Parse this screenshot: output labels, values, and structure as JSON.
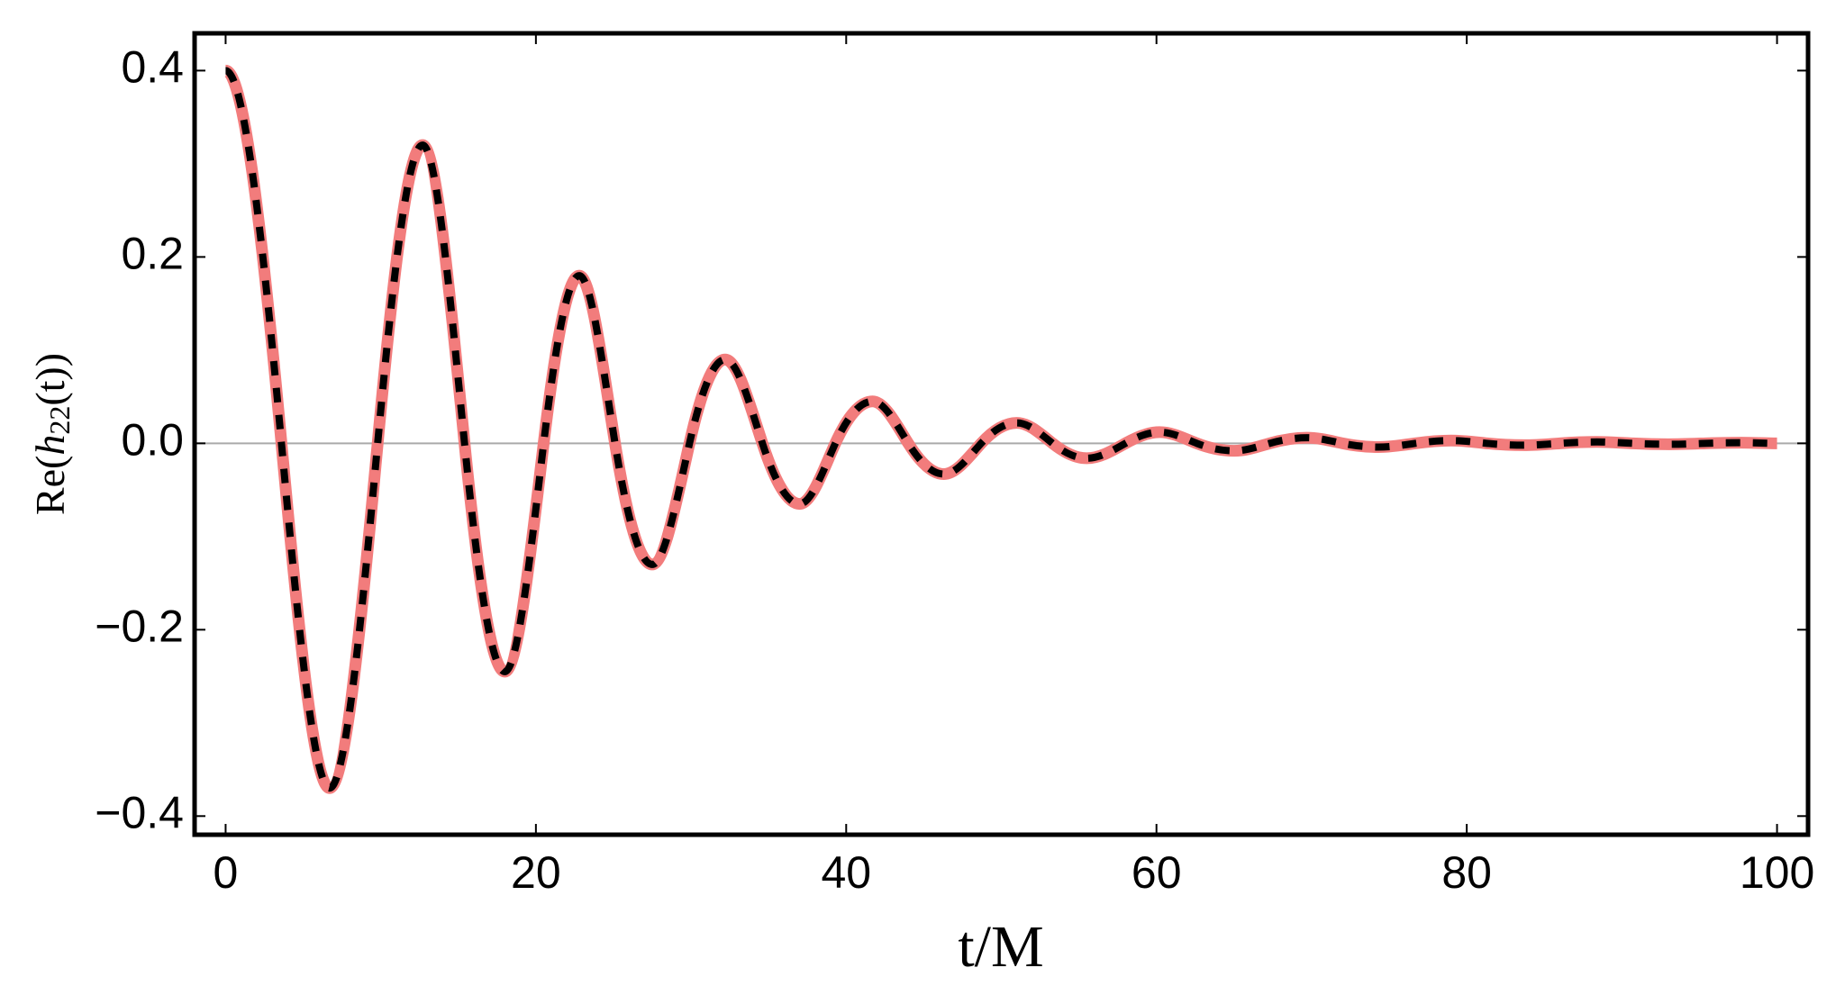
{
  "chart_data": {
    "type": "line",
    "xlabel": "t/M",
    "ylabel": [
      "Re(",
      "h",
      "22",
      "(t))"
    ],
    "x": [
      0,
      3.6,
      6.7,
      9.8,
      12.7,
      15.4,
      18,
      20.5,
      22.8,
      25.1,
      27.5,
      29.9,
      32.2,
      34.6,
      37,
      39.3,
      41.7,
      44,
      46.3,
      48.7,
      51,
      53.3,
      55.5,
      58,
      60.2,
      62.6,
      65,
      67.3,
      69.7,
      72,
      74.3,
      76.7,
      79,
      81.3,
      83.7,
      86,
      88.4,
      90.7,
      93,
      95.4,
      97.7,
      100
    ],
    "series": [
      {
        "color": "#f27c7c",
        "dashed": false,
        "values": [
          0.4,
          0,
          -0.37,
          0,
          0.32,
          0,
          -0.245,
          0,
          0.18,
          0,
          -0.13,
          0,
          0.09,
          0,
          -0.065,
          0,
          0.045,
          0,
          -0.033,
          0,
          0.022,
          0,
          -0.016,
          0,
          0.012,
          0,
          -0.008,
          0,
          0.006,
          0,
          -0.004,
          0,
          0.003,
          0,
          -0.002,
          0,
          0.0015,
          0,
          -0.001,
          0,
          0.0007,
          0
        ]
      },
      {
        "color": "#000000",
        "dashed": true,
        "values": [
          0.4,
          0,
          -0.37,
          0,
          0.32,
          0,
          -0.245,
          0,
          0.18,
          0,
          -0.13,
          0,
          0.09,
          0,
          -0.065,
          0,
          0.045,
          0,
          -0.033,
          0,
          0.022,
          0,
          -0.016,
          0,
          0.012,
          0,
          -0.008,
          0,
          0.006,
          0,
          -0.004,
          0,
          0.003,
          0,
          -0.002,
          0,
          0.0015,
          0,
          -0.001,
          0,
          0.0007,
          0
        ]
      }
    ],
    "xlim": [
      -2,
      102
    ],
    "ylim": [
      -0.42,
      0.44
    ],
    "xticks": [
      0,
      20,
      40,
      60,
      80,
      100
    ],
    "yticks": [
      {
        "value": -0.4,
        "label": "−0.4"
      },
      {
        "value": -0.2,
        "label": "−0.2"
      },
      {
        "value": 0,
        "label": "0.0"
      },
      {
        "value": 0.2,
        "label": "0.2"
      },
      {
        "value": 0.4,
        "label": "0.4"
      }
    ],
    "zero_line": true,
    "grid": false
  }
}
